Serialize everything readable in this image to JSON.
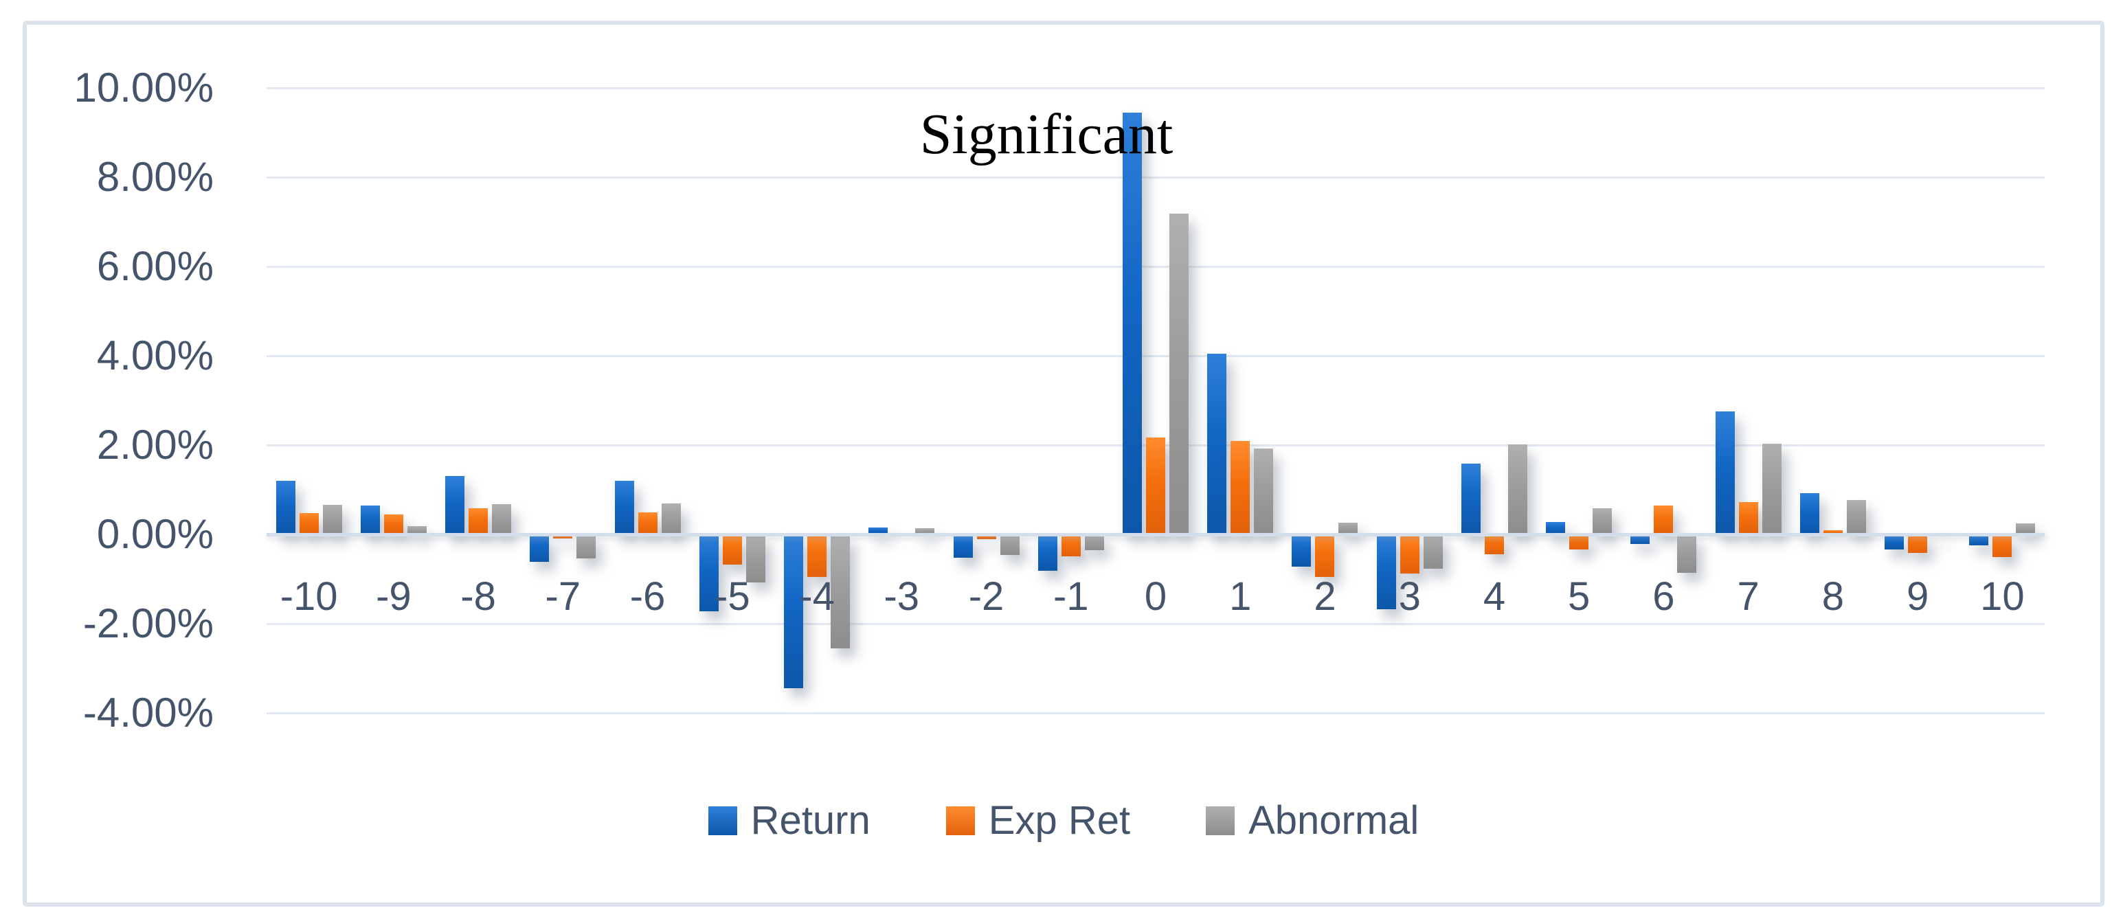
{
  "chart_data": {
    "type": "bar",
    "title": "Significant",
    "categories": [
      "-10",
      "-9",
      "-8",
      "-7",
      "-6",
      "-5",
      "-4",
      "-3",
      "-2",
      "-1",
      "0",
      "1",
      "2",
      "3",
      "4",
      "5",
      "6",
      "7",
      "8",
      "9",
      "10"
    ],
    "series": [
      {
        "name": "Return",
        "color": "#1266c4",
        "gradient": [
          "#2e80d9",
          "#0d57a9"
        ],
        "values": [
          1.2,
          0.65,
          1.31,
          -0.61,
          1.2,
          -1.72,
          -3.45,
          0.15,
          -0.53,
          -0.82,
          9.44,
          4.05,
          -0.72,
          -1.68,
          1.58,
          0.28,
          -0.21,
          2.75,
          0.92,
          -0.34,
          -0.24
        ]
      },
      {
        "name": "Exp Ret",
        "color": "#f46f0c",
        "gradient": [
          "#ff8c2e",
          "#e2610a"
        ],
        "values": [
          0.47,
          0.45,
          0.58,
          -0.09,
          0.49,
          -0.67,
          -0.95,
          0.02,
          -0.1,
          -0.49,
          2.17,
          2.1,
          -0.96,
          -0.87,
          -0.44,
          -0.34,
          0.65,
          0.72,
          0.1,
          -0.41,
          -0.5
        ]
      },
      {
        "name": "Abnormal",
        "color": "#9d9d9d",
        "gradient": [
          "#b0b0b0",
          "#8d8d8d"
        ],
        "values": [
          0.66,
          0.18,
          0.67,
          -0.54,
          0.7,
          -1.07,
          -2.56,
          0.14,
          -0.46,
          -0.36,
          7.18,
          1.92,
          0.26,
          -0.77,
          2.02,
          0.59,
          -0.86,
          2.03,
          0.77,
          -0.05,
          0.24
        ]
      }
    ],
    "y_axis": {
      "unit": "%",
      "min": -4,
      "max": 10,
      "ticks": [
        {
          "label": "10.00%",
          "value": 10
        },
        {
          "label": "8.00%",
          "value": 8
        },
        {
          "label": "6.00%",
          "value": 6
        },
        {
          "label": "4.00%",
          "value": 4
        },
        {
          "label": "2.00%",
          "value": 2
        },
        {
          "label": "0.00%",
          "value": 0
        },
        {
          "label": "-2.00%",
          "value": -2
        },
        {
          "label": "-4.00%",
          "value": -4
        }
      ]
    },
    "grid": true,
    "legend_position": "bottom"
  }
}
